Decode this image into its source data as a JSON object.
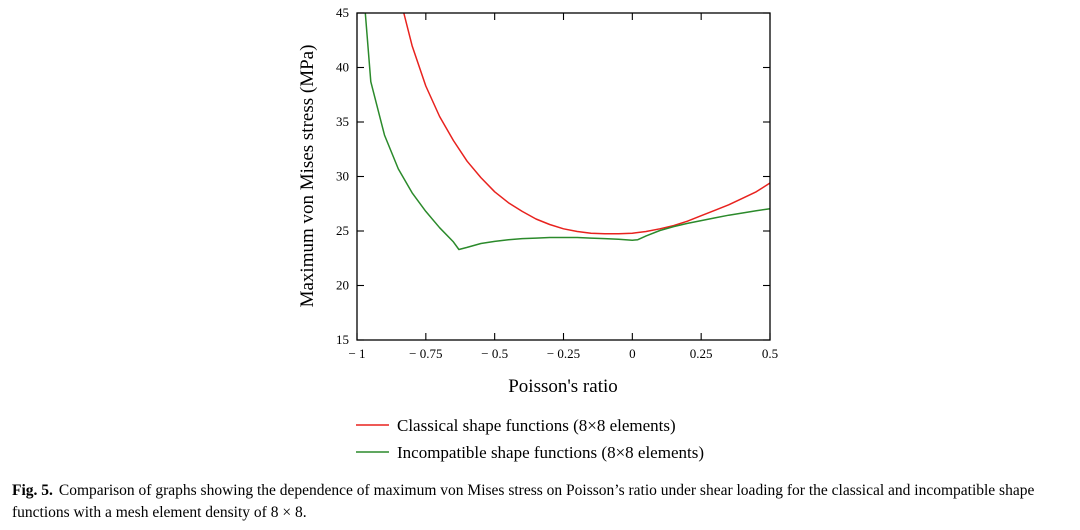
{
  "chart_data": {
    "type": "line",
    "xlabel": "Poisson's ratio",
    "ylabel": "Maximum von Mises stress (MPa)",
    "xlim": [
      -1,
      0.5
    ],
    "ylim": [
      15,
      45
    ],
    "x_ticks": [
      -1,
      -0.75,
      -0.5,
      -0.25,
      0,
      0.25,
      0.5
    ],
    "x_tick_labels": [
      "− 1",
      "− 0.75",
      "− 0.5",
      "− 0.25",
      "0",
      "0.25",
      "0.5"
    ],
    "y_ticks": [
      15,
      20,
      25,
      30,
      35,
      40,
      45
    ],
    "y_tick_labels": [
      "15",
      "20",
      "25",
      "30",
      "35",
      "40",
      "45"
    ],
    "grid": false,
    "legend_position": "bottom",
    "series": [
      {
        "name": "Classical shape functions (8×8 elements)",
        "color": "#e8221e",
        "x": [
          -0.83,
          -0.8,
          -0.75,
          -0.7,
          -0.65,
          -0.6,
          -0.55,
          -0.5,
          -0.45,
          -0.4,
          -0.35,
          -0.3,
          -0.25,
          -0.2,
          -0.15,
          -0.1,
          -0.05,
          0,
          0.05,
          0.1,
          0.15,
          0.2,
          0.25,
          0.3,
          0.35,
          0.4,
          0.45,
          0.5
        ],
        "y": [
          45,
          42.0,
          38.3,
          35.5,
          33.3,
          31.4,
          29.9,
          28.6,
          27.6,
          26.8,
          26.1,
          25.6,
          25.2,
          24.95,
          24.8,
          24.75,
          24.75,
          24.8,
          24.95,
          25.2,
          25.5,
          25.9,
          26.4,
          26.9,
          27.4,
          28.0,
          28.6,
          29.4
        ]
      },
      {
        "name": "Incompatible shape functions (8×8 elements)",
        "color": "#2b8a2b",
        "x": [
          -0.97,
          -0.95,
          -0.9,
          -0.85,
          -0.8,
          -0.75,
          -0.7,
          -0.65,
          -0.63,
          -0.6,
          -0.55,
          -0.5,
          -0.45,
          -0.4,
          -0.35,
          -0.3,
          -0.25,
          -0.2,
          -0.15,
          -0.1,
          -0.05,
          0,
          0.02,
          0.05,
          0.1,
          0.15,
          0.2,
          0.25,
          0.3,
          0.35,
          0.4,
          0.45,
          0.5
        ],
        "y": [
          45,
          38.7,
          33.8,
          30.7,
          28.5,
          26.8,
          25.3,
          24.0,
          23.3,
          23.5,
          23.85,
          24.05,
          24.2,
          24.3,
          24.35,
          24.4,
          24.4,
          24.4,
          24.35,
          24.3,
          24.25,
          24.15,
          24.2,
          24.55,
          25.05,
          25.4,
          25.7,
          25.95,
          26.2,
          26.45,
          26.65,
          26.85,
          27.05
        ]
      }
    ]
  },
  "caption": {
    "label": "Fig. 5.",
    "text": "Comparison of graphs showing the dependence of maximum von Mises stress on Poisson’s ratio under shear loading for the classical and incompatible shape functions with a mesh element density of 8 × 8."
  }
}
